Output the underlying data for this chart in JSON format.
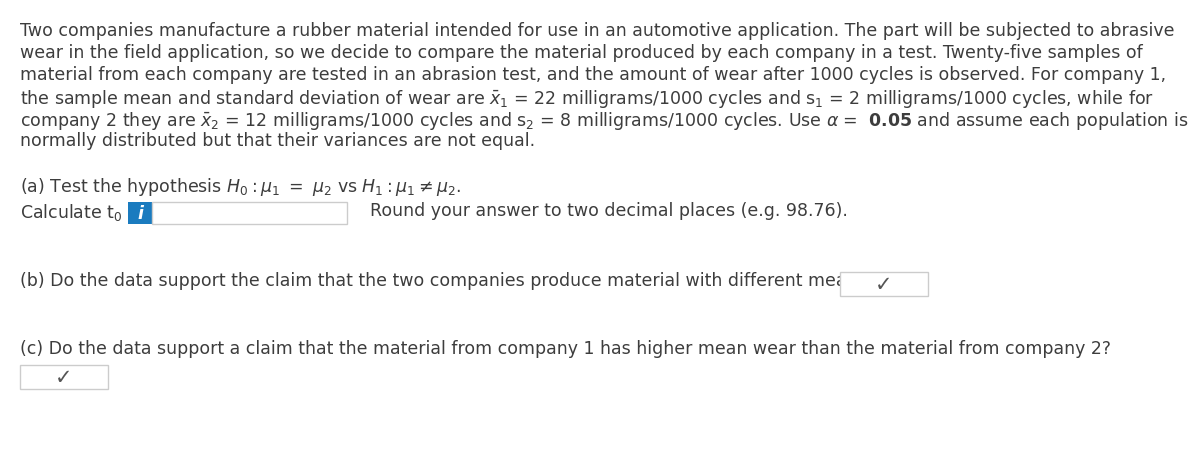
{
  "bg_color": "#ffffff",
  "text_color": "#3d3d3d",
  "chevron_color": "#555555",
  "input_box_color": "#ffffff",
  "input_box_border": "#cccccc",
  "info_box_color": "#1a7bbf",
  "font_size": 12.5,
  "line1": "Two companies manufacture a rubber material intended for use in an automotive application. The part will be subjected to abrasive",
  "line2": "wear in the field application, so we decide to compare the material produced by each company in a test. Twenty-five samples of",
  "line3": "material from each company are tested in an abrasion test, and the amount of wear after 1000 cycles is observed. For company 1,",
  "line4a": "the sample mean and standard deviation of wear are ",
  "line4b": " = 22 milligrams/1000 cycles and s",
  "line4c": " = 2 milligrams/1000 cycles, while for",
  "line5a": "company 2 they are ",
  "line5b": " = 12 milligrams/1000 cycles and s",
  "line5c": " = 8 milligrams/1000 cycles. Use ",
  "line5d": " =  ",
  "line5e": "0.05",
  "line5f": " and assume each population is",
  "line6": "normally distributed but that their variances are not equal.",
  "part_a_line": "(a) Test the hypothesis ",
  "part_a_calc_label": "Calculate t",
  "part_a_round": "Round your answer to two decimal places (e.g. 98.76).",
  "part_b": "(b) Do the data support the claim that the two companies produce material with different mean wear?",
  "part_c": "(c) Do the data support a claim that the material from company 1 has higher mean wear than the material from company 2?"
}
